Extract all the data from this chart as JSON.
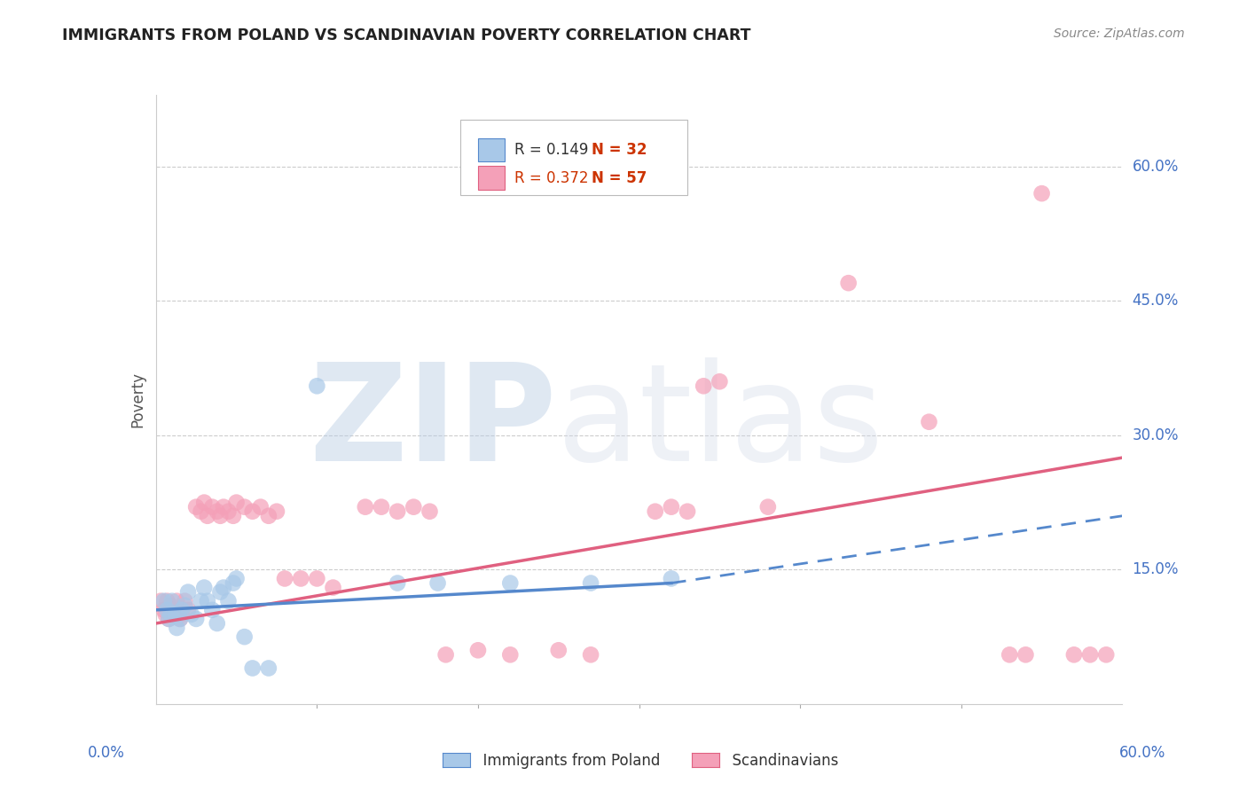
{
  "title": "IMMIGRANTS FROM POLAND VS SCANDINAVIAN POVERTY CORRELATION CHART",
  "source": "Source: ZipAtlas.com",
  "ylabel": "Poverty",
  "ytick_labels": [
    "15.0%",
    "30.0%",
    "45.0%",
    "60.0%"
  ],
  "ytick_values": [
    0.15,
    0.3,
    0.45,
    0.6
  ],
  "xrange": [
    0.0,
    0.6
  ],
  "yrange": [
    0.0,
    0.68
  ],
  "legend1_r": "0.149",
  "legend1_n": "32",
  "legend2_r": "0.372",
  "legend2_n": "57",
  "blue_color": "#a8c8e8",
  "pink_color": "#f4a0b8",
  "blue_line_color": "#5588cc",
  "pink_line_color": "#e06080",
  "blue_scatter": [
    [
      0.005,
      0.115
    ],
    [
      0.007,
      0.105
    ],
    [
      0.008,
      0.095
    ],
    [
      0.009,
      0.1
    ],
    [
      0.01,
      0.115
    ],
    [
      0.012,
      0.1
    ],
    [
      0.013,
      0.085
    ],
    [
      0.015,
      0.095
    ],
    [
      0.016,
      0.105
    ],
    [
      0.018,
      0.11
    ],
    [
      0.02,
      0.125
    ],
    [
      0.022,
      0.1
    ],
    [
      0.025,
      0.095
    ],
    [
      0.028,
      0.115
    ],
    [
      0.03,
      0.13
    ],
    [
      0.032,
      0.115
    ],
    [
      0.035,
      0.105
    ],
    [
      0.038,
      0.09
    ],
    [
      0.04,
      0.125
    ],
    [
      0.042,
      0.13
    ],
    [
      0.045,
      0.115
    ],
    [
      0.048,
      0.135
    ],
    [
      0.05,
      0.14
    ],
    [
      0.055,
      0.075
    ],
    [
      0.06,
      0.04
    ],
    [
      0.07,
      0.04
    ],
    [
      0.1,
      0.355
    ],
    [
      0.15,
      0.135
    ],
    [
      0.175,
      0.135
    ],
    [
      0.22,
      0.135
    ],
    [
      0.27,
      0.135
    ],
    [
      0.32,
      0.14
    ]
  ],
  "pink_scatter": [
    [
      0.003,
      0.115
    ],
    [
      0.005,
      0.105
    ],
    [
      0.006,
      0.1
    ],
    [
      0.007,
      0.115
    ],
    [
      0.008,
      0.095
    ],
    [
      0.009,
      0.11
    ],
    [
      0.01,
      0.105
    ],
    [
      0.012,
      0.1
    ],
    [
      0.013,
      0.115
    ],
    [
      0.015,
      0.095
    ],
    [
      0.016,
      0.1
    ],
    [
      0.018,
      0.115
    ],
    [
      0.02,
      0.105
    ],
    [
      0.025,
      0.22
    ],
    [
      0.028,
      0.215
    ],
    [
      0.03,
      0.225
    ],
    [
      0.032,
      0.21
    ],
    [
      0.035,
      0.22
    ],
    [
      0.038,
      0.215
    ],
    [
      0.04,
      0.21
    ],
    [
      0.042,
      0.22
    ],
    [
      0.045,
      0.215
    ],
    [
      0.048,
      0.21
    ],
    [
      0.05,
      0.225
    ],
    [
      0.055,
      0.22
    ],
    [
      0.06,
      0.215
    ],
    [
      0.065,
      0.22
    ],
    [
      0.07,
      0.21
    ],
    [
      0.075,
      0.215
    ],
    [
      0.08,
      0.14
    ],
    [
      0.09,
      0.14
    ],
    [
      0.1,
      0.14
    ],
    [
      0.11,
      0.13
    ],
    [
      0.13,
      0.22
    ],
    [
      0.14,
      0.22
    ],
    [
      0.15,
      0.215
    ],
    [
      0.16,
      0.22
    ],
    [
      0.17,
      0.215
    ],
    [
      0.18,
      0.055
    ],
    [
      0.2,
      0.06
    ],
    [
      0.22,
      0.055
    ],
    [
      0.25,
      0.06
    ],
    [
      0.27,
      0.055
    ],
    [
      0.31,
      0.215
    ],
    [
      0.32,
      0.22
    ],
    [
      0.33,
      0.215
    ],
    [
      0.34,
      0.355
    ],
    [
      0.35,
      0.36
    ],
    [
      0.38,
      0.22
    ],
    [
      0.43,
      0.47
    ],
    [
      0.48,
      0.315
    ],
    [
      0.53,
      0.055
    ],
    [
      0.54,
      0.055
    ],
    [
      0.55,
      0.57
    ],
    [
      0.57,
      0.055
    ],
    [
      0.58,
      0.055
    ],
    [
      0.59,
      0.055
    ]
  ],
  "blue_trendline_solid": [
    [
      0.0,
      0.105
    ],
    [
      0.32,
      0.135
    ]
  ],
  "blue_trendline_dashed": [
    [
      0.32,
      0.135
    ],
    [
      0.6,
      0.21
    ]
  ],
  "pink_trendline": [
    [
      0.0,
      0.09
    ],
    [
      0.6,
      0.275
    ]
  ],
  "watermark_zip": "ZIP",
  "watermark_atlas": "atlas",
  "background_color": "#ffffff",
  "grid_color": "#cccccc",
  "spine_color": "#cccccc"
}
